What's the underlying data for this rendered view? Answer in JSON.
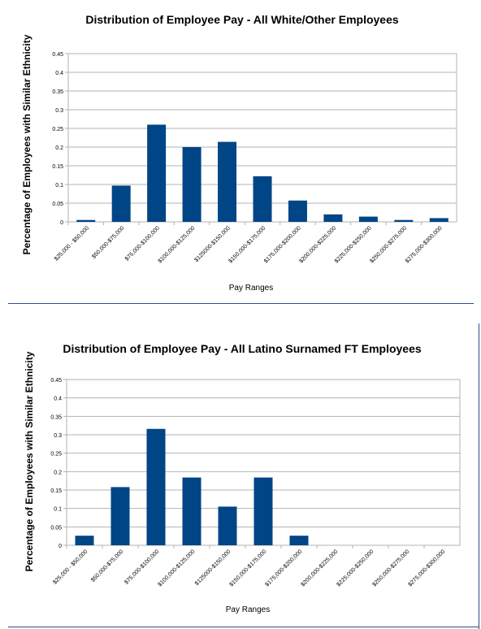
{
  "chart_data": [
    {
      "type": "bar",
      "title": "Distribution of Employee Pay - All White/Other Employees",
      "xlabel": "Pay Ranges",
      "ylabel": "Percentage of Employees with Similar Ethnicity",
      "ylim": [
        0,
        0.45
      ],
      "yticks": [
        "0",
        "0.05",
        "0.1",
        "0.15",
        "0.2",
        "0.25",
        "0.3",
        "0.35",
        "0.4",
        "0.45"
      ],
      "grid": true,
      "bar_color": "#004586",
      "categories": [
        "$25,000 - $50,000",
        "$50,000-$75,000",
        "$75,000-$100,000",
        "$100,000-$125,000",
        "$125000-$150,000",
        "$150,000-$175,000",
        "$175,000-$200,000",
        "$200,000-$225,000",
        "$225,000-$250,000",
        "$250,000-$275,000",
        "$275,000-$300,000"
      ],
      "values": [
        0.005,
        0.097,
        0.26,
        0.2,
        0.214,
        0.122,
        0.057,
        0.02,
        0.014,
        0.005,
        0.01
      ]
    },
    {
      "type": "bar",
      "title": "Distribution of Employee Pay - All Latino Surnamed FT Employees",
      "xlabel": "Pay Ranges",
      "ylabel": "Percentage of Employees with Similar Ethnicity",
      "ylim": [
        0,
        0.45
      ],
      "yticks": [
        "0",
        "0.05",
        "0.1",
        "0.15",
        "0.2",
        "0.25",
        "0.3",
        "0.35",
        "0.4",
        "0.45"
      ],
      "grid": true,
      "bar_color": "#004586",
      "categories": [
        "$25,000 - $50,000",
        "$50,000-$75,000",
        "$75,000-$100,000",
        "$100,000-$125,000",
        "$125000-$150,000",
        "$150,000-$175,000",
        "$175,000-$200,000",
        "$200,000-$225,000",
        "$225,000-$250,000",
        "$250,000-$275,000",
        "$275,000-$300,000"
      ],
      "values": [
        0.026,
        0.158,
        0.316,
        0.184,
        0.105,
        0.184,
        0.026,
        0,
        0,
        0,
        0
      ]
    }
  ]
}
